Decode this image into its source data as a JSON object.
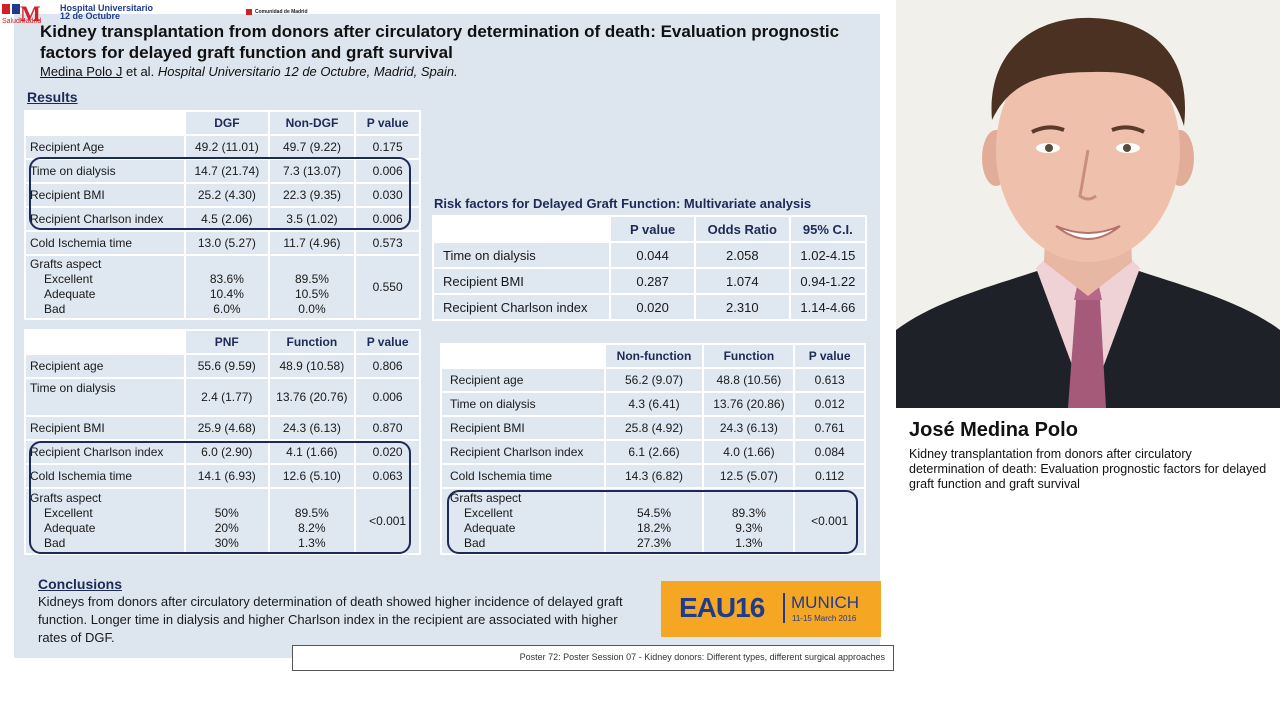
{
  "logos": {
    "hospital_line1": "Hospital Universitario",
    "hospital_line2": "12 de Octubre",
    "salud_madrid": "SaludMadrid",
    "comunidad": "Comunidad de Madrid"
  },
  "title": "Kidney transplantation from donors after circulatory determination of death: Evaluation prognostic factors for delayed graft function and graft survival",
  "authors": {
    "name": "Medina Polo J",
    "etal": " et al. ",
    "affiliation": "Hospital Universitario 12 de Octubre, Madrid, Spain."
  },
  "results_heading": "Results",
  "table_dgf": {
    "headers": [
      "",
      "DGF",
      "Non-DGF",
      "P value"
    ],
    "rows": [
      [
        "Recipient Age",
        "49.2 (11.01)",
        "49.7 (9.22)",
        "0.175"
      ],
      [
        "Time on dialysis",
        "14.7 (21.74)",
        "7.3 (13.07)",
        "0.006"
      ],
      [
        "Recipient BMI",
        "25.2 (4.30)",
        "22.3 (9.35)",
        "0.030"
      ],
      [
        "Recipient Charlson index",
        "4.5 (2.06)",
        "3.5 (1.02)",
        "0.006"
      ],
      [
        "Cold Ischemia time",
        "13.0 (5.27)",
        "11.7 (4.96)",
        "0.573"
      ]
    ],
    "grafts": {
      "label": "Grafts aspect",
      "sub": [
        "Excellent",
        "Adequate",
        "Bad"
      ],
      "col1": [
        "83.6%",
        "10.4%",
        "6.0%"
      ],
      "col2": [
        "89.5%",
        "10.5%",
        "0.0%"
      ],
      "p": "0.550"
    }
  },
  "table_pnf": {
    "headers": [
      "",
      "PNF",
      "Function",
      "P value"
    ],
    "rows": [
      [
        "Recipient age",
        "55.6 (9.59)",
        "48.9 (10.58)",
        "0.806"
      ],
      [
        "Time on dialysis",
        "2.4 (1.77)",
        "13.76 (20.76)",
        "0.006"
      ],
      [
        "Recipient BMI",
        "25.9 (4.68)",
        "24.3 (6.13)",
        "0.870"
      ],
      [
        "Recipient Charlson index",
        "6.0 (2.90)",
        "4.1 (1.66)",
        "0.020"
      ],
      [
        "Cold Ischemia time",
        "14.1 (6.93)",
        "12.6 (5.10)",
        "0.063"
      ]
    ],
    "grafts": {
      "label": "Grafts aspect",
      "sub": [
        "Excellent",
        "Adequate",
        "Bad"
      ],
      "col1": [
        "50%",
        "20%",
        "30%"
      ],
      "col2": [
        "89.5%",
        "8.2%",
        "1.3%"
      ],
      "p": "<0.001"
    }
  },
  "risk_title": "Risk factors for Delayed Graft Function: Multivariate analysis",
  "table_risk": {
    "headers": [
      "",
      "P value",
      "Odds Ratio",
      "95% C.I."
    ],
    "rows": [
      [
        "Time on dialysis",
        "0.044",
        "2.058",
        "1.02-4.15"
      ],
      [
        "Recipient BMI",
        "0.287",
        "1.074",
        "0.94-1.22"
      ],
      [
        "Recipient Charlson index",
        "0.020",
        "2.310",
        "1.14-4.66"
      ]
    ]
  },
  "table_nonfunc": {
    "headers": [
      "",
      "Non-function",
      "Function",
      "P value"
    ],
    "rows": [
      [
        "Recipient age",
        "56.2 (9.07)",
        "48.8 (10.56)",
        "0.613"
      ],
      [
        "Time on dialysis",
        "4.3 (6.41)",
        "13.76 (20.86)",
        "0.012"
      ],
      [
        "Recipient BMI",
        "25.8 (4.92)",
        "24.3 (6.13)",
        "0.761"
      ],
      [
        "Recipient Charlson index",
        "6.1 (2.66)",
        "4.0 (1.66)",
        "0.084"
      ],
      [
        "Cold Ischemia time",
        "14.3 (6.82)",
        "12.5 (5.07)",
        "0.112"
      ]
    ],
    "grafts": {
      "label": "Grafts aspect",
      "sub": [
        "Excellent",
        "Adequate",
        "Bad"
      ],
      "col1": [
        "54.5%",
        "18.2%",
        "27.3%"
      ],
      "col2": [
        "89.3%",
        "9.3%",
        "1.3%"
      ],
      "p": "<0.001"
    }
  },
  "conclusions": {
    "heading": "Conclusions",
    "text": "Kidneys from donors after circulatory determination of death showed higher incidence of delayed graft function. Longer time in dialysis and higher Charlson index in the recipient are associated with higher rates of DGF."
  },
  "eau": {
    "logo": "EAU16",
    "city": "MUNICH",
    "dates": "11-15 March 2016"
  },
  "footer": "Poster 72: Poster Session 07 - Kidney donors: Different types, different surgical approaches",
  "speaker": {
    "name": "José Medina Polo",
    "talk": "Kidney transplantation from donors after circulatory determination of death: Evaluation prognostic factors for delayed graft function and graft survival"
  },
  "colors": {
    "navy": "#1c2a55",
    "panel": "#dde6ef",
    "eau_orange": "#f5a623"
  }
}
